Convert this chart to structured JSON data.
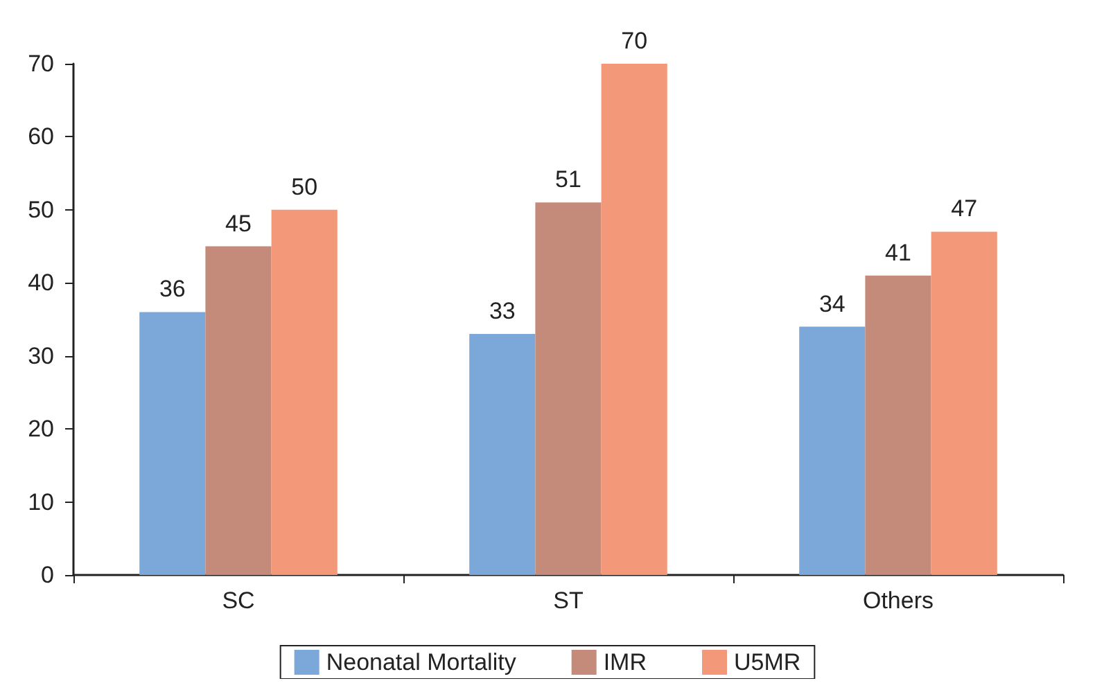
{
  "chart_data": {
    "type": "bar",
    "categories": [
      "SC",
      "ST",
      "Others"
    ],
    "series": [
      {
        "name": "Neonatal Mortality",
        "color": "#7ba7d9",
        "values": [
          36,
          33,
          34
        ]
      },
      {
        "name": "IMR",
        "color": "#c48b7a",
        "values": [
          45,
          51,
          41
        ]
      },
      {
        "name": "U5MR",
        "color": "#f4987a",
        "values": [
          50,
          70,
          47
        ]
      }
    ],
    "ylim": [
      0,
      70
    ],
    "yticks": [
      0,
      10,
      20,
      30,
      40,
      50,
      60,
      70
    ],
    "grid": false,
    "legend": "bottom",
    "data_labels": true
  }
}
